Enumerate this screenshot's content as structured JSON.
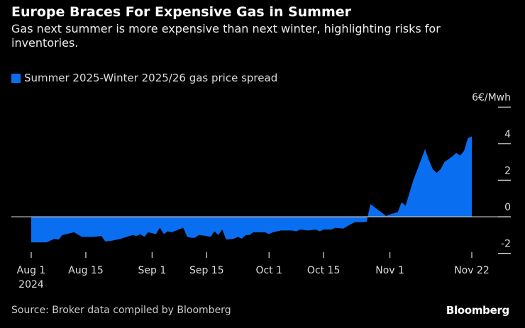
{
  "title": "Europe Braces For Expensive Gas in Summer",
  "subtitle": "Gas next summer is more expensive than next winter, highlighting risks for inventories.",
  "source": "Source: Broker data compiled by Bloomberg",
  "logo": "Bloomberg",
  "colors": {
    "series": "#0a6ef0",
    "background": "#000000"
  },
  "chart_data": {
    "type": "area",
    "title": "Europe Braces For Expensive Gas in Summer",
    "legend": [
      "Summer 2025-Winter 2025/26 gas price spread"
    ],
    "unit_label": "6€/Mwh",
    "ylabel": "€/Mwh",
    "ylim": [
      -2.5,
      6
    ],
    "yticks": [
      {
        "v": 6,
        "label": "6€/Mwh"
      },
      {
        "v": 4,
        "label": "4"
      },
      {
        "v": 2,
        "label": "2"
      },
      {
        "v": 0,
        "label": "0"
      },
      {
        "v": -2,
        "label": "-2"
      }
    ],
    "xticks": [
      {
        "d": 0,
        "label": "Aug 1",
        "sub": "2024"
      },
      {
        "d": 14,
        "label": "Aug 15"
      },
      {
        "d": 31,
        "label": "Sep 1"
      },
      {
        "d": 45,
        "label": "Sep 15"
      },
      {
        "d": 61,
        "label": "Oct 1"
      },
      {
        "d": 75,
        "label": "Oct 15"
      },
      {
        "d": 92,
        "label": "Nov 1"
      },
      {
        "d": 113,
        "label": "Nov 22"
      }
    ],
    "x_unit": "days since 2024-08-01",
    "series": [
      {
        "name": "Summer 2025-Winter 2025/26 gas price spread",
        "points": [
          [
            0,
            -1.4
          ],
          [
            4,
            -1.4
          ],
          [
            6,
            -1.2
          ],
          [
            7,
            -1.25
          ],
          [
            8,
            -1.0
          ],
          [
            11,
            -0.85
          ],
          [
            13,
            -1.1
          ],
          [
            16,
            -1.1
          ],
          [
            18,
            -1.05
          ],
          [
            19,
            -1.35
          ],
          [
            21,
            -1.3
          ],
          [
            23,
            -1.2
          ],
          [
            26,
            -1.0
          ],
          [
            27,
            -1.05
          ],
          [
            28,
            -0.95
          ],
          [
            29,
            -1.1
          ],
          [
            30,
            -0.85
          ],
          [
            32,
            -0.95
          ],
          [
            33,
            -0.6
          ],
          [
            34,
            -0.95
          ],
          [
            35,
            -0.8
          ],
          [
            36,
            -0.85
          ],
          [
            39,
            -0.6
          ],
          [
            40,
            -1.1
          ],
          [
            41,
            -1.15
          ],
          [
            42,
            -1.15
          ],
          [
            43,
            -1.0
          ],
          [
            45,
            -1.05
          ],
          [
            46,
            -1.1
          ],
          [
            47,
            -0.8
          ],
          [
            48,
            -1.0
          ],
          [
            49,
            -0.7
          ],
          [
            50,
            -1.25
          ],
          [
            52,
            -1.2
          ],
          [
            53,
            -1.1
          ],
          [
            54,
            -1.2
          ],
          [
            55,
            -1.0
          ],
          [
            56,
            -1.0
          ],
          [
            57,
            -0.85
          ],
          [
            60,
            -0.85
          ],
          [
            61,
            -0.95
          ],
          [
            62,
            -0.85
          ],
          [
            64,
            -0.75
          ],
          [
            67,
            -0.75
          ],
          [
            68,
            -0.8
          ],
          [
            69,
            -0.7
          ],
          [
            71,
            -0.75
          ],
          [
            73,
            -0.7
          ],
          [
            74,
            -0.8
          ],
          [
            75,
            -0.7
          ],
          [
            77,
            -0.7
          ],
          [
            78,
            -0.6
          ],
          [
            80,
            -0.65
          ],
          [
            82,
            -0.4
          ],
          [
            83,
            -0.3
          ],
          [
            86,
            -0.28
          ],
          [
            87,
            0.7
          ],
          [
            91,
            0.05
          ],
          [
            93,
            0.2
          ],
          [
            94,
            0.25
          ],
          [
            95,
            0.8
          ],
          [
            96,
            0.6
          ],
          [
            97,
            1.3
          ],
          [
            98,
            2.0
          ],
          [
            101,
            3.7
          ],
          [
            102,
            3.1
          ],
          [
            103,
            2.6
          ],
          [
            104,
            2.4
          ],
          [
            105,
            2.6
          ],
          [
            106,
            3.0
          ],
          [
            108,
            3.3
          ],
          [
            109,
            3.5
          ],
          [
            110,
            3.35
          ],
          [
            111,
            3.6
          ],
          [
            112,
            4.3
          ],
          [
            113,
            4.4
          ]
        ]
      }
    ]
  }
}
